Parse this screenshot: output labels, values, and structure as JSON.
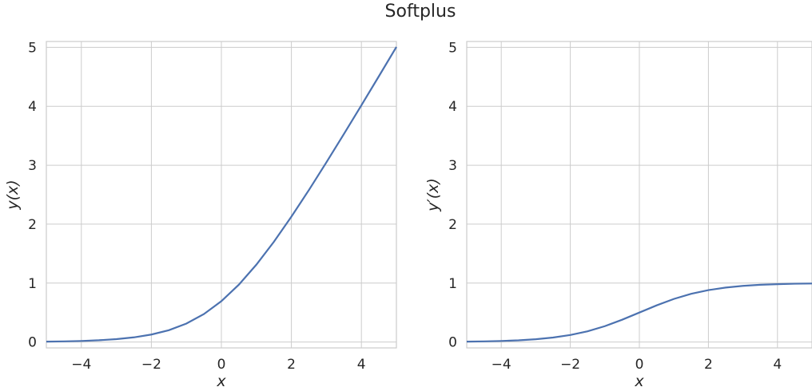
{
  "figure": {
    "title": "Softplus",
    "line_color": "#4c72b0",
    "grid_color": "#cccccc"
  },
  "chart_data": [
    {
      "type": "line",
      "xlabel": "x",
      "ylabel": "y(x)",
      "xlim": [
        -5,
        5
      ],
      "ylim": [
        -0.1,
        5.1
      ],
      "xticks": [
        -4,
        -2,
        0,
        2,
        4
      ],
      "yticks": [
        0,
        1,
        2,
        3,
        4,
        5
      ],
      "grid": true,
      "series": [
        {
          "x": [
            -5,
            -4.5,
            -4,
            -3.5,
            -3,
            -2.5,
            -2,
            -1.5,
            -1,
            -0.5,
            0,
            0.5,
            1,
            1.5,
            2,
            2.5,
            3,
            3.5,
            4,
            4.5,
            5
          ],
          "values": [
            0.007,
            0.011,
            0.018,
            0.03,
            0.049,
            0.079,
            0.127,
            0.201,
            0.313,
            0.474,
            0.693,
            0.974,
            1.313,
            1.701,
            2.127,
            2.579,
            3.049,
            3.53,
            4.018,
            4.511,
            5.007
          ]
        }
      ]
    },
    {
      "type": "line",
      "xlabel": "x",
      "ylabel": "y′(x)",
      "xlim": [
        -5,
        5
      ],
      "ylim": [
        -0.1,
        5.1
      ],
      "xticks": [
        -4,
        -2,
        0,
        2,
        4
      ],
      "yticks": [
        0,
        1,
        2,
        3,
        4,
        5
      ],
      "grid": true,
      "series": [
        {
          "x": [
            -5,
            -4.5,
            -4,
            -3.5,
            -3,
            -2.5,
            -2,
            -1.5,
            -1,
            -0.5,
            0,
            0.5,
            1,
            1.5,
            2,
            2.5,
            3,
            3.5,
            4,
            4.5,
            5
          ],
          "values": [
            0.007,
            0.011,
            0.018,
            0.029,
            0.047,
            0.076,
            0.119,
            0.182,
            0.269,
            0.378,
            0.5,
            0.622,
            0.731,
            0.818,
            0.881,
            0.924,
            0.953,
            0.971,
            0.982,
            0.989,
            0.993
          ]
        }
      ]
    }
  ]
}
